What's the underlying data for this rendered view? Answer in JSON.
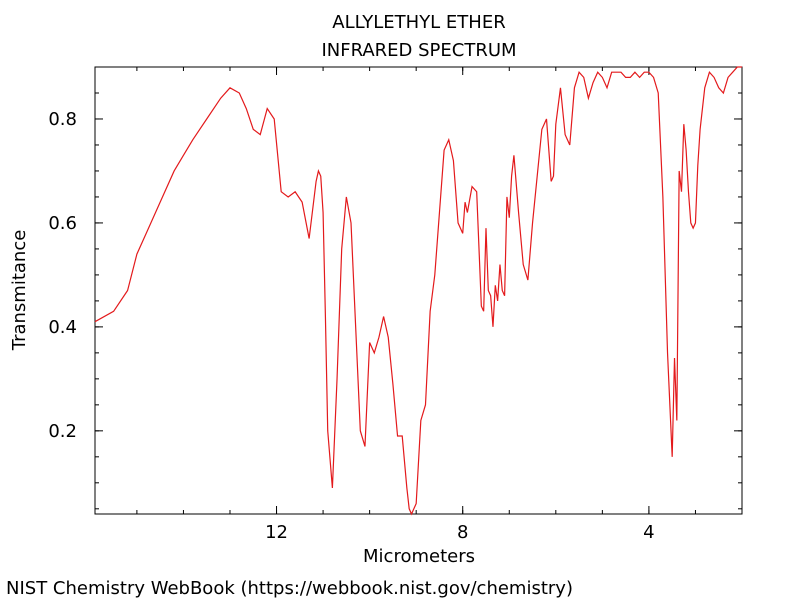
{
  "chart_data": {
    "type": "line",
    "title": "ALLYLETHYL ETHER",
    "subtitle": "INFRARED SPECTRUM",
    "xlabel": "Micrometers",
    "ylabel": "Transmitance",
    "credit": "NIST Chemistry WebBook (https://webbook.nist.gov/chemistry)",
    "xlim": [
      15.9,
      2.0
    ],
    "ylim": [
      0.04,
      0.9
    ],
    "x_ticks": [
      12,
      8,
      4
    ],
    "y_ticks": [
      0.2,
      0.4,
      0.6,
      0.8
    ],
    "x_tick_labels": [
      "12",
      "8",
      "4"
    ],
    "y_tick_labels": [
      "0.2",
      "0.4",
      "0.6",
      "0.8"
    ],
    "grid": false,
    "line_color": "#e31a1c",
    "series": [
      {
        "x": [
          15.9,
          15.5,
          15.2,
          15.0,
          14.8,
          14.5,
          14.2,
          14.0,
          13.8,
          13.5,
          13.2,
          13.0,
          12.8,
          12.65,
          12.5,
          12.35,
          12.2,
          12.05,
          11.9,
          11.75,
          11.6,
          11.45,
          11.3,
          11.15,
          11.1,
          11.05,
          11.0,
          10.95,
          10.9,
          10.8,
          10.7,
          10.6,
          10.5,
          10.4,
          10.3,
          10.2,
          10.1,
          10.0,
          9.9,
          9.8,
          9.7,
          9.6,
          9.5,
          9.4,
          9.3,
          9.2,
          9.15,
          9.1,
          9.05,
          9.0,
          8.9,
          8.8,
          8.7,
          8.6,
          8.5,
          8.4,
          8.3,
          8.2,
          8.1,
          8.0,
          7.95,
          7.9,
          7.8,
          7.7,
          7.6,
          7.55,
          7.5,
          7.45,
          7.4,
          7.35,
          7.3,
          7.25,
          7.2,
          7.15,
          7.1,
          7.05,
          7.0,
          6.95,
          6.9,
          6.8,
          6.7,
          6.6,
          6.5,
          6.4,
          6.3,
          6.2,
          6.1,
          6.05,
          6.0,
          5.9,
          5.8,
          5.7,
          5.6,
          5.5,
          5.4,
          5.3,
          5.2,
          5.1,
          5.0,
          4.9,
          4.8,
          4.7,
          4.6,
          4.5,
          4.4,
          4.3,
          4.2,
          4.1,
          4.0,
          3.9,
          3.8,
          3.7,
          3.6,
          3.5,
          3.45,
          3.4,
          3.35,
          3.3,
          3.25,
          3.2,
          3.15,
          3.1,
          3.05,
          3.0,
          2.95,
          2.9,
          2.8,
          2.7,
          2.6,
          2.5,
          2.4,
          2.3,
          2.2,
          2.1,
          2.0
        ],
        "y": [
          0.41,
          0.43,
          0.47,
          0.54,
          0.58,
          0.64,
          0.7,
          0.73,
          0.76,
          0.8,
          0.84,
          0.86,
          0.85,
          0.82,
          0.78,
          0.77,
          0.82,
          0.8,
          0.66,
          0.65,
          0.66,
          0.64,
          0.57,
          0.68,
          0.7,
          0.69,
          0.62,
          0.42,
          0.2,
          0.09,
          0.3,
          0.55,
          0.65,
          0.6,
          0.4,
          0.2,
          0.17,
          0.37,
          0.35,
          0.38,
          0.42,
          0.38,
          0.29,
          0.19,
          0.19,
          0.09,
          0.05,
          0.04,
          0.05,
          0.06,
          0.22,
          0.25,
          0.43,
          0.5,
          0.62,
          0.74,
          0.76,
          0.72,
          0.6,
          0.58,
          0.64,
          0.62,
          0.67,
          0.66,
          0.44,
          0.43,
          0.59,
          0.47,
          0.46,
          0.4,
          0.48,
          0.45,
          0.52,
          0.47,
          0.46,
          0.65,
          0.61,
          0.69,
          0.73,
          0.62,
          0.52,
          0.49,
          0.6,
          0.69,
          0.78,
          0.8,
          0.68,
          0.69,
          0.79,
          0.86,
          0.77,
          0.75,
          0.86,
          0.89,
          0.88,
          0.84,
          0.87,
          0.89,
          0.88,
          0.86,
          0.89,
          0.89,
          0.89,
          0.88,
          0.88,
          0.89,
          0.88,
          0.89,
          0.89,
          0.88,
          0.85,
          0.65,
          0.35,
          0.15,
          0.34,
          0.22,
          0.7,
          0.66,
          0.79,
          0.74,
          0.66,
          0.6,
          0.59,
          0.6,
          0.71,
          0.78,
          0.86,
          0.89,
          0.88,
          0.86,
          0.85,
          0.88,
          0.89,
          0.9,
          0.9
        ]
      }
    ]
  }
}
